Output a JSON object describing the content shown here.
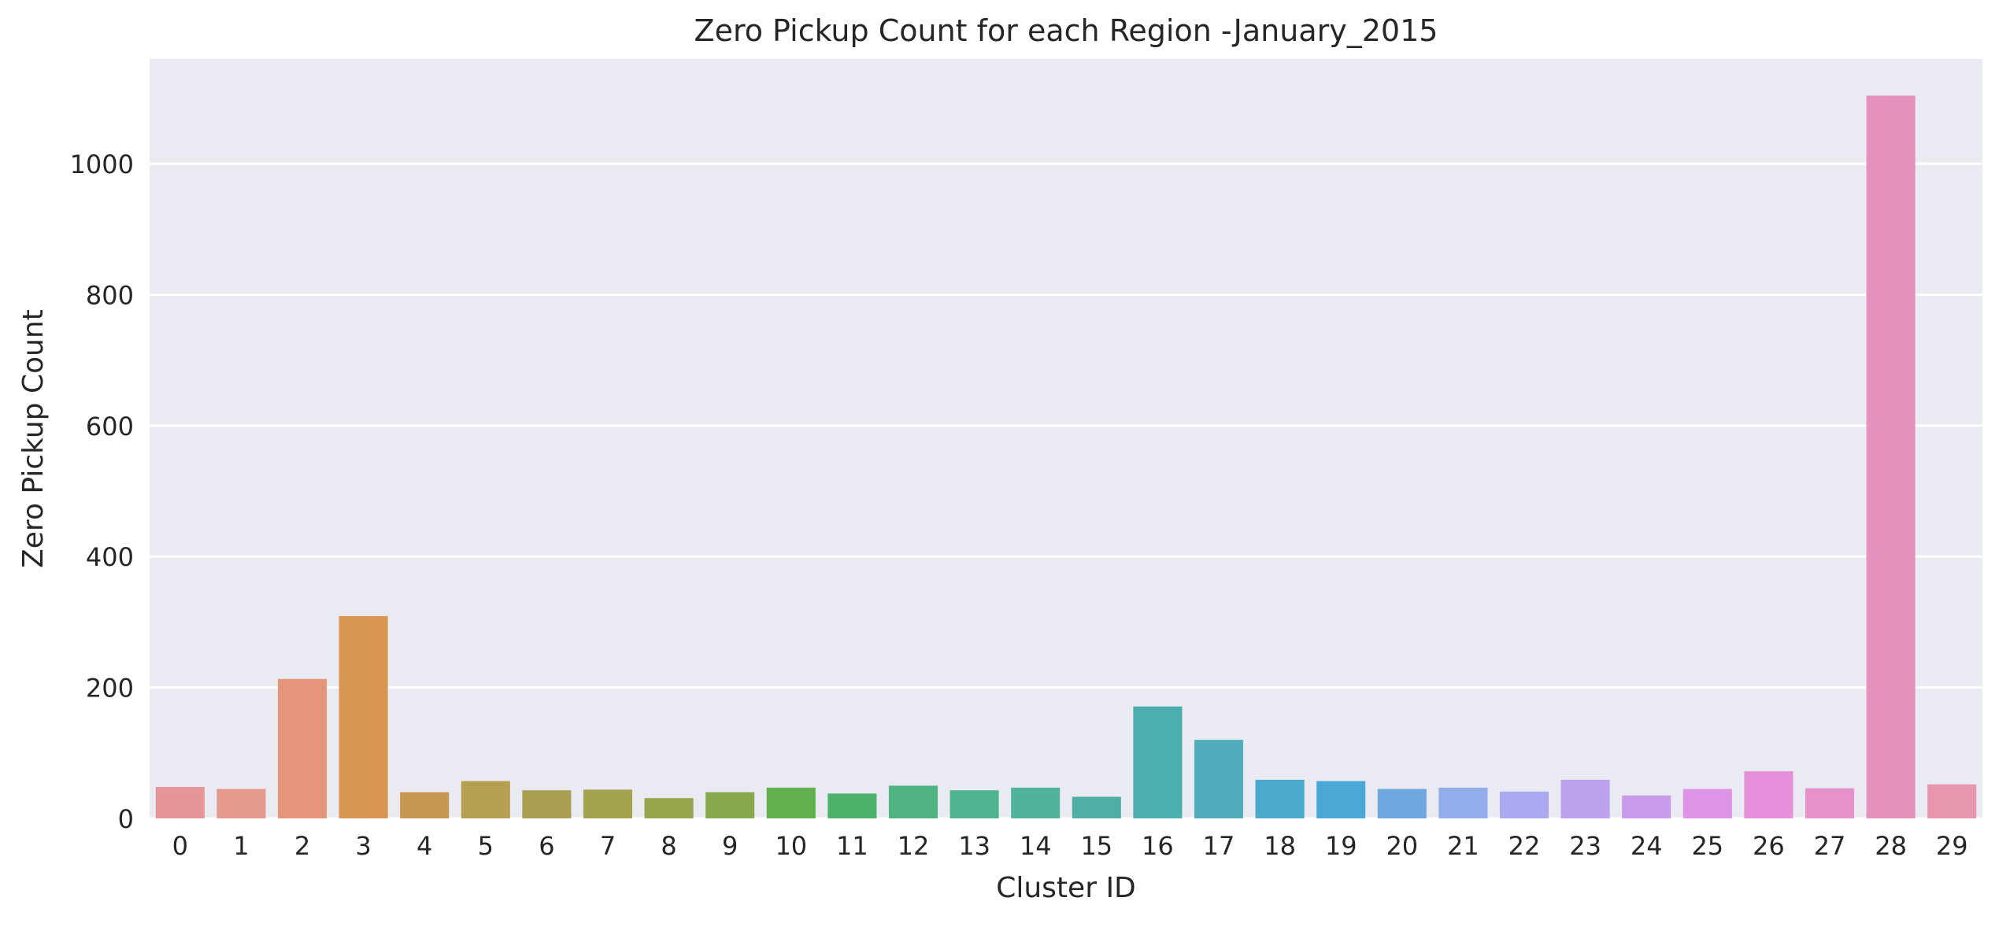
{
  "chart_data": {
    "type": "bar",
    "title": "Zero Pickup Count for each Region -January_2015",
    "xlabel": "Cluster ID",
    "ylabel": "Zero Pickup Count",
    "categories": [
      "0",
      "1",
      "2",
      "3",
      "4",
      "5",
      "6",
      "7",
      "8",
      "9",
      "10",
      "11",
      "12",
      "13",
      "14",
      "15",
      "16",
      "17",
      "18",
      "19",
      "20",
      "21",
      "22",
      "23",
      "24",
      "25",
      "26",
      "27",
      "28",
      "29"
    ],
    "values": [
      48,
      45,
      213,
      309,
      40,
      57,
      43,
      44,
      31,
      40,
      47,
      38,
      50,
      43,
      47,
      33,
      171,
      120,
      59,
      57,
      45,
      47,
      41,
      59,
      35,
      45,
      72,
      46,
      1104,
      52
    ],
    "ylim": [
      0,
      1160
    ],
    "yticks": [
      0,
      200,
      400,
      600,
      800,
      1000
    ],
    "grid": true,
    "colors": [
      "#e8959a",
      "#e6998d",
      "#e5967a",
      "#d89650",
      "#c59750",
      "#b4a050",
      "#aa9e50",
      "#a4a24e",
      "#97a64d",
      "#86aa4b",
      "#62b04d",
      "#4ab26a",
      "#4fb381",
      "#50b38f",
      "#51b399",
      "#4fafa4",
      "#4daeae",
      "#51acbb",
      "#4aa9cc",
      "#4aa7d6",
      "#6fa9e0",
      "#93adea",
      "#aba9ef",
      "#bba1ee",
      "#cb9beb",
      "#de94e6",
      "#e68fda",
      "#e791cb",
      "#e791bf",
      "#e896ad"
    ]
  }
}
